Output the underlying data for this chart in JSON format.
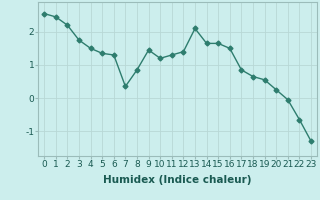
{
  "x": [
    0,
    1,
    2,
    3,
    4,
    5,
    6,
    7,
    8,
    9,
    10,
    11,
    12,
    13,
    14,
    15,
    16,
    17,
    18,
    19,
    20,
    21,
    22,
    23
  ],
  "y": [
    2.55,
    2.45,
    2.2,
    1.75,
    1.5,
    1.35,
    1.3,
    0.35,
    0.85,
    1.45,
    1.2,
    1.3,
    1.4,
    2.1,
    1.65,
    1.65,
    1.5,
    0.85,
    0.65,
    0.55,
    0.25,
    -0.05,
    -0.65,
    -1.3
  ],
  "line_color": "#2e7d6e",
  "marker": "D",
  "marker_size": 2.5,
  "line_width": 1.0,
  "background_color": "#cceeed",
  "grid_color": "#b8d8d6",
  "xlabel": "Humidex (Indice chaleur)",
  "xlabel_fontsize": 7.5,
  "tick_labels": [
    "0",
    "1",
    "2",
    "3",
    "4",
    "5",
    "6",
    "7",
    "8",
    "9",
    "10",
    "11",
    "12",
    "13",
    "14",
    "15",
    "16",
    "17",
    "18",
    "19",
    "20",
    "21",
    "22",
    "23"
  ],
  "yticks": [
    -1,
    0,
    1,
    2
  ],
  "ylim": [
    -1.75,
    2.9
  ],
  "xlim": [
    -0.5,
    23.5
  ],
  "tick_fontsize": 6.5
}
